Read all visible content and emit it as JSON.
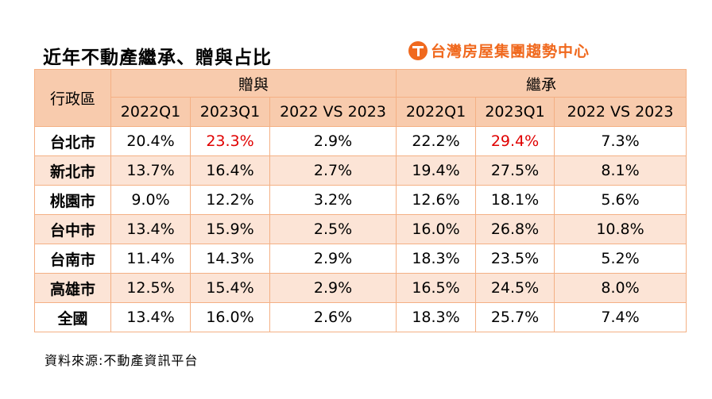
{
  "title": "近年不動產繼承、贈與占比",
  "brand": {
    "name": "台灣房屋集團趨勢中心",
    "logo_icon": "t-logo-icon",
    "color": "#f0691e"
  },
  "source": "資料來源:不動產資訊平台",
  "chart_data": {
    "type": "table",
    "header": {
      "region": "行政區",
      "groups": [
        "贈與",
        "繼承"
      ],
      "sub": [
        "2022Q1",
        "2023Q1",
        "2022 VS 2023",
        "2022Q1",
        "2023Q1",
        "2022 VS 2023"
      ]
    },
    "rows": [
      {
        "region": "台北市",
        "cells": [
          "20.4%",
          "23.3%",
          "2.9%",
          "22.2%",
          "29.4%",
          "7.3%"
        ],
        "highlight": [
          1,
          4
        ]
      },
      {
        "region": "新北市",
        "cells": [
          "13.7%",
          "16.4%",
          "2.7%",
          "19.4%",
          "27.5%",
          "8.1%"
        ],
        "highlight": []
      },
      {
        "region": "桃園市",
        "cells": [
          "9.0%",
          "12.2%",
          "3.2%",
          "12.6%",
          "18.1%",
          "5.6%"
        ],
        "highlight": []
      },
      {
        "region": "台中市",
        "cells": [
          "13.4%",
          "15.9%",
          "2.5%",
          "16.0%",
          "26.8%",
          "10.8%"
        ],
        "highlight": []
      },
      {
        "region": "台南市",
        "cells": [
          "11.4%",
          "14.3%",
          "2.9%",
          "18.3%",
          "23.5%",
          "5.2%"
        ],
        "highlight": []
      },
      {
        "region": "高雄市",
        "cells": [
          "12.5%",
          "15.4%",
          "2.9%",
          "16.5%",
          "24.5%",
          "8.0%"
        ],
        "highlight": []
      },
      {
        "region": "全國",
        "cells": [
          "13.4%",
          "16.0%",
          "2.6%",
          "18.3%",
          "25.7%",
          "7.4%"
        ],
        "highlight": []
      }
    ],
    "colors": {
      "header": "#f8cbad",
      "stripe": "#fce4d6",
      "border": "#f4b084",
      "highlight": "#e00000"
    }
  }
}
